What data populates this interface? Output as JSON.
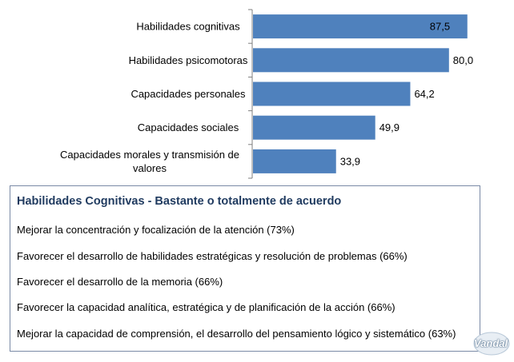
{
  "chart_data": {
    "type": "bar",
    "orientation": "horizontal",
    "categories": [
      "Habilidades cognitivas",
      "Habilidades psicomotoras",
      "Capacidades personales",
      "Capacidades sociales",
      "Capacidades morales y transmisión de valores"
    ],
    "category_lines": [
      [
        "Habilidades cognitivas"
      ],
      [
        "Habilidades psicomotoras"
      ],
      [
        "Capacidades personales"
      ],
      [
        "Capacidades sociales"
      ],
      [
        "Capacidades morales y transmisión de",
        "valores"
      ]
    ],
    "values": [
      87.5,
      80.0,
      64.2,
      49.9,
      33.9
    ],
    "value_labels": [
      "87,5",
      "80,0",
      "64,2",
      "49,9",
      "33,9"
    ],
    "xlim": [
      0,
      100
    ],
    "bar_color": "#4f81bd",
    "grid": false
  },
  "panel": {
    "title": "Habilidades Cognitivas - Bastante o totalmente de acuerdo",
    "items": [
      "Mejorar la concentración y focalización de la atención (73%)",
      "Favorecer el desarrollo de habilidades estratégicas y resolución de problemas   (66%)",
      "Favorecer el desarrollo de la memoria  (66%)",
      "Favorecer la capacidad analítica, estratégica y de planificación de la acción  (66%)",
      "Mejorar la capacidad de comprensión, el desarrollo del pensamiento lógico y sistemático  (63%)"
    ]
  },
  "watermark": {
    "text": "Vandal"
  }
}
